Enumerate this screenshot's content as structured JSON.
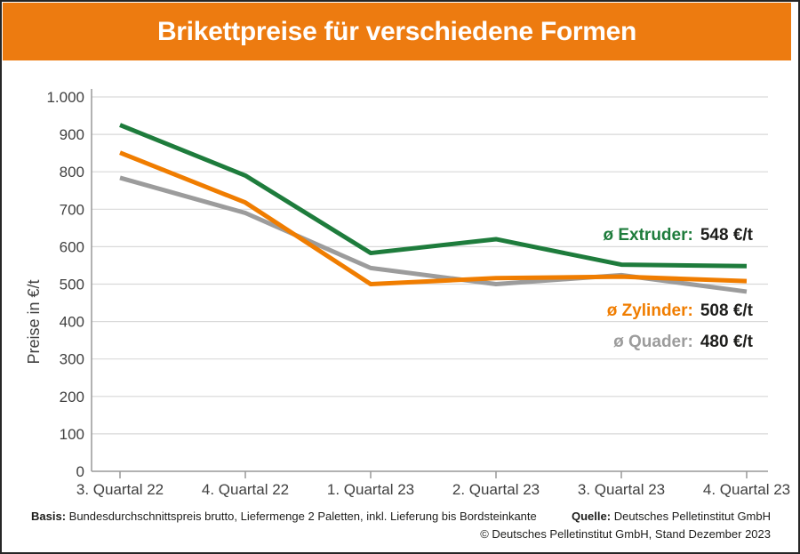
{
  "header": {
    "title": "Brikettpreise für verschiedene Formen",
    "background_color": "#ed7b10",
    "title_color": "#ffffff"
  },
  "chart_data": {
    "type": "line",
    "title": "Brikettpreise für verschiedene Formen",
    "ylabel": "Preise in €/t",
    "categories": [
      "3. Quartal 22",
      "4. Quartal 22",
      "1. Quartal 23",
      "2. Quartal 23",
      "3. Quartal 23",
      "4. Quartal 23"
    ],
    "ylim": [
      0,
      1000
    ],
    "ytick_step": 100,
    "ytick_labels": [
      "0",
      "100",
      "200",
      "300",
      "400",
      "500",
      "600",
      "700",
      "800",
      "900",
      "1.000"
    ],
    "grid": true,
    "legend_position": "inline-right",
    "series": [
      {
        "name": "Extruder",
        "color": "#1e7c3c",
        "legend_label": "ø Extruder:",
        "legend_value": "548 €/t",
        "values": [
          925,
          790,
          583,
          620,
          552,
          548
        ]
      },
      {
        "name": "Zylinder",
        "color": "#f07d00",
        "legend_label": "ø Zylinder:",
        "legend_value": "508 €/t",
        "values": [
          851,
          718,
          500,
          516,
          520,
          508
        ]
      },
      {
        "name": "Quader",
        "color": "#9c9c9c",
        "legend_label": "ø Quader:",
        "legend_value": "480 €/t",
        "values": [
          784,
          690,
          543,
          500,
          524,
          480
        ]
      }
    ],
    "axis_color": "#999999",
    "grid_color": "#d9d9d9",
    "tick_label_color": "#3f3f3f",
    "value_text_color": "#1d1d1b"
  },
  "footer": {
    "basis_label": "Basis:",
    "basis_text": "Bundesdurchschnittspreis brutto, Liefermenge 2 Paletten, inkl. Lieferung bis Bordsteinkante",
    "quelle_label": "Quelle:",
    "quelle_text": "Deutsches Pelletinstitut GmbH",
    "copyright": "© Deutsches Pelletinstitut GmbH, Stand Dezember 2023"
  }
}
